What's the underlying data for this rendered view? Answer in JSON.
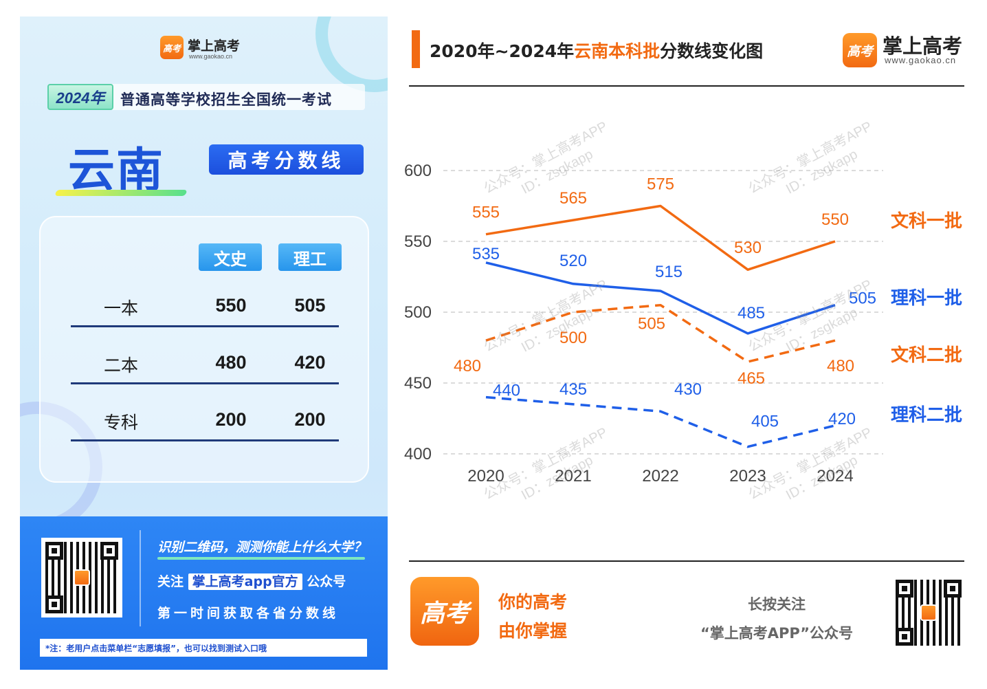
{
  "poster": {
    "brand_name": "掌上高考",
    "brand_url": "www.gaokao.cn",
    "logo_glyph": "高考",
    "year_badge": "2024年",
    "exam_name": "普通高等学校招生全国统一考试",
    "province": "云南",
    "score_pill": "高考分数线",
    "columns": [
      "文史",
      "理工"
    ],
    "rows": [
      {
        "label": "一本",
        "wenshi": "550",
        "ligong": "505"
      },
      {
        "label": "二本",
        "wenshi": "480",
        "ligong": "420"
      },
      {
        "label": "专科",
        "wenshi": "200",
        "ligong": "200"
      }
    ],
    "footer": {
      "line1": "识别二维码，测测你能上什么大学？",
      "line2_pre": "关注",
      "line2_highlight": "掌上高考app官方",
      "line2_post": "公众号",
      "line3": "第一时间获取各省分数线",
      "note": "*注：老用户点击菜单栏“志愿填报”，也可以找到测试入口哦"
    }
  },
  "header": {
    "title_pre": "2020年~2024年",
    "title_accent": "云南本科批",
    "title_post": "分数线变化图",
    "brand_name": "掌上高考",
    "brand_url": "www.gaokao.cn",
    "logo_glyph": "高考"
  },
  "watermark": {
    "line1": "公众号：掌上高考APP",
    "line2": "ID：zsgkapp"
  },
  "chart_data": {
    "type": "line",
    "title": "2020年~2024年云南本科批分数线变化图",
    "categories": [
      "2020",
      "2021",
      "2022",
      "2023",
      "2024"
    ],
    "ylim": [
      400,
      600
    ],
    "yticks": [
      400,
      450,
      500,
      550,
      600
    ],
    "grid": true,
    "series": [
      {
        "name": "文科一批",
        "values": [
          555,
          565,
          575,
          530,
          550
        ],
        "color": "#f26a12",
        "dash": false
      },
      {
        "name": "理科一批",
        "values": [
          535,
          520,
          515,
          485,
          505
        ],
        "color": "#1f5fe8",
        "dash": false
      },
      {
        "name": "文科二批",
        "values": [
          480,
          500,
          505,
          465,
          480
        ],
        "color": "#f26a12",
        "dash": true
      },
      {
        "name": "理科二批",
        "values": [
          440,
          435,
          430,
          405,
          420
        ],
        "color": "#1f5fe8",
        "dash": true
      }
    ]
  },
  "promo": {
    "logo_glyph": "高考",
    "slogan_line1": "你的高考",
    "slogan_line2": "由你掌握",
    "follow_line1": "长按关注",
    "follow_line2": "“掌上高考APP”公众号"
  }
}
